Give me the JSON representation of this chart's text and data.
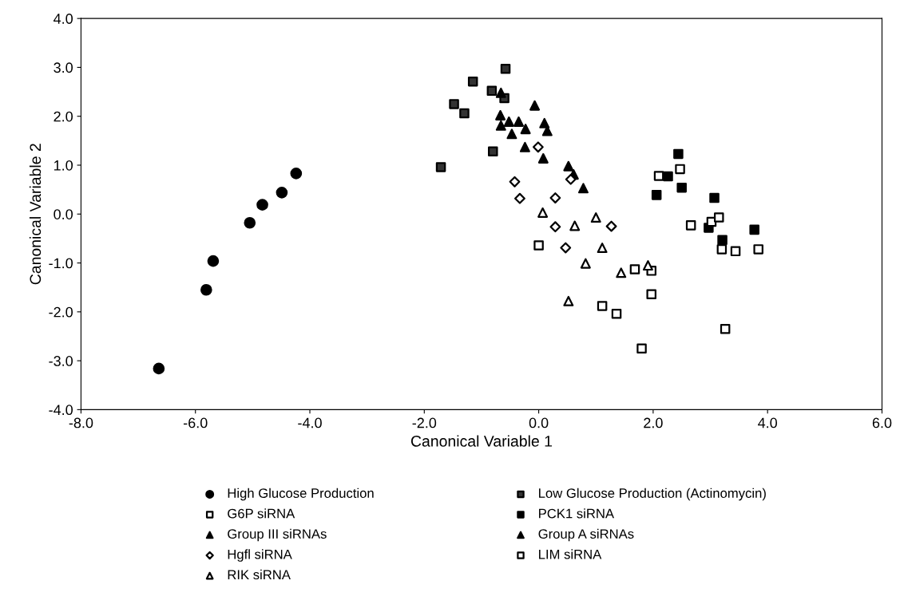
{
  "chart_data": {
    "type": "scatter",
    "xlabel": "Canonical Variable 1",
    "ylabel": "Canonical Variable 2",
    "xlim": [
      -8,
      6
    ],
    "ylim": [
      -4,
      4
    ],
    "xticks": [
      {
        "value": -8,
        "label": "-8.0"
      },
      {
        "value": -6,
        "label": "-6.0"
      },
      {
        "value": -4,
        "label": "-4.0"
      },
      {
        "value": -2,
        "label": "-2.0"
      },
      {
        "value": 0,
        "label": "0.0"
      },
      {
        "value": 2,
        "label": "2.0"
      },
      {
        "value": 4,
        "label": "4.0"
      },
      {
        "value": 6,
        "label": "6.0"
      }
    ],
    "yticks": [
      {
        "value": -4,
        "label": "-4.0"
      },
      {
        "value": -3,
        "label": "-3.0"
      },
      {
        "value": -2,
        "label": "-2.0"
      },
      {
        "value": -1,
        "label": "-1.0"
      },
      {
        "value": 0,
        "label": "0.0"
      },
      {
        "value": 1,
        "label": "1.0"
      },
      {
        "value": 2,
        "label": "2.0"
      },
      {
        "value": 3,
        "label": "3.0"
      },
      {
        "value": 4,
        "label": "4.0"
      }
    ],
    "grid": false,
    "legend": "bottom",
    "series": [
      {
        "name": "High Glucose Production",
        "color": "#000000",
        "marker": "circle",
        "x": [
          -6.64,
          -5.81,
          -5.69,
          -5.05,
          -4.83,
          -4.49,
          -4.24
        ],
        "values": [
          -3.16,
          -1.55,
          -0.96,
          -0.18,
          0.19,
          0.44,
          0.83
        ]
      },
      {
        "name": "Low Glucose Production (Actinomycin)",
        "color": "#333333",
        "marker": "square",
        "x": [
          -0.58,
          -1.15,
          -0.82,
          -0.6,
          -1.48,
          -1.3,
          -0.8,
          -1.71
        ],
        "values": [
          2.97,
          2.71,
          2.52,
          2.37,
          2.25,
          2.06,
          1.28,
          0.96
        ]
      },
      {
        "name": "G6P siRNA",
        "color": "#ffffff",
        "marker": "square",
        "x": [
          0.0,
          1.68,
          1.97,
          1.97,
          1.11,
          1.36,
          1.8
        ],
        "values": [
          -0.64,
          -1.13,
          -1.16,
          -1.64,
          -1.88,
          -2.04,
          -2.75
        ]
      },
      {
        "name": "PCK1 siRNA",
        "color": "#000000",
        "marker": "square",
        "x": [
          2.44,
          2.26,
          2.5,
          2.06,
          3.07,
          2.97,
          3.21,
          3.77
        ],
        "values": [
          1.23,
          0.77,
          0.54,
          0.39,
          0.33,
          -0.28,
          -0.53,
          -0.32
        ]
      },
      {
        "name": "Group III siRNAs",
        "color": "#000000",
        "marker": "triangle",
        "x": [
          -0.66,
          -0.07,
          -0.67,
          -0.52,
          -0.35,
          -0.66,
          0.1,
          -0.23
        ],
        "values": [
          2.48,
          2.22,
          2.02,
          1.89,
          1.89,
          1.81,
          1.86,
          1.74
        ]
      },
      {
        "name": "Group A siRNAs",
        "color": "#000000",
        "marker": "triangle",
        "x": [
          0.15,
          -0.47,
          -0.24,
          0.08,
          0.52,
          0.61,
          0.78
        ],
        "values": [
          1.7,
          1.64,
          1.37,
          1.14,
          0.98,
          0.81,
          0.53
        ]
      },
      {
        "name": "Hgfl siRNA",
        "color": "#ffffff",
        "marker": "diamond",
        "x": [
          -0.01,
          -0.42,
          0.56,
          -0.33,
          0.29,
          0.29,
          1.27,
          0.47
        ],
        "values": [
          1.37,
          0.66,
          0.71,
          0.32,
          0.33,
          -0.26,
          -0.25,
          -0.69
        ]
      },
      {
        "name": "LIM siRNA",
        "color": "#ffffff",
        "marker": "square",
        "x": [
          2.47,
          2.1,
          2.66,
          3.02,
          3.15,
          3.2,
          3.44,
          3.84,
          3.26
        ],
        "values": [
          0.92,
          0.78,
          -0.23,
          -0.16,
          -0.07,
          -0.72,
          -0.76,
          -0.72,
          -2.35
        ]
      },
      {
        "name": "RIK siRNA",
        "color": "#ffffff",
        "marker": "triangle",
        "x": [
          0.07,
          1.0,
          0.63,
          1.11,
          0.82,
          1.44,
          1.91,
          0.52
        ],
        "values": [
          0.03,
          -0.07,
          -0.24,
          -0.69,
          -1.01,
          -1.2,
          -1.05,
          -1.78
        ]
      }
    ]
  }
}
